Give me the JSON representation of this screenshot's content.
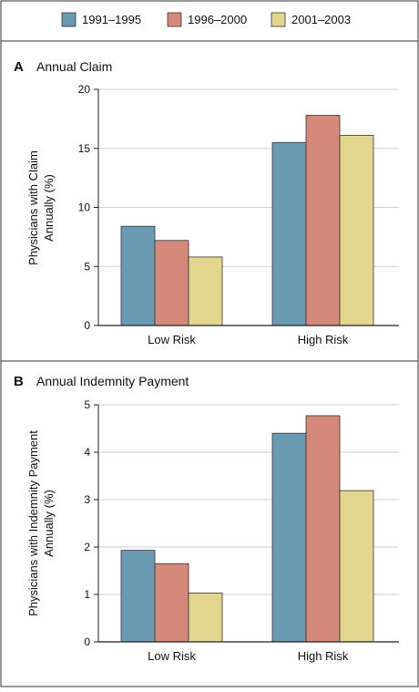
{
  "legend": [
    {
      "name": "1991–1995",
      "color": "#6a9ab2"
    },
    {
      "name": "1996–2000",
      "color": "#d4897a"
    },
    {
      "name": "2001–2003",
      "color": "#e3d790"
    }
  ],
  "chart_data": [
    {
      "type": "bar",
      "panel": "A",
      "title": "Annual Claim",
      "xlabel": "",
      "ylabel": [
        "Physicians with Claim",
        "Annually (%)"
      ],
      "categories": [
        "Low Risk",
        "High Risk"
      ],
      "ylim": [
        0,
        20
      ],
      "yticks": [
        0,
        5,
        10,
        15,
        20
      ],
      "grid": true,
      "series": [
        {
          "name": "1991–1995",
          "values": [
            8.4,
            15.5
          ]
        },
        {
          "name": "1996–2000",
          "values": [
            7.2,
            17.8
          ]
        },
        {
          "name": "2001–2003",
          "values": [
            5.8,
            16.1
          ]
        }
      ]
    },
    {
      "type": "bar",
      "panel": "B",
      "title": "Annual Indemnity Payment",
      "xlabel": "",
      "ylabel": [
        "Physicians with Indemnity Payment",
        "Annually (%)"
      ],
      "categories": [
        "Low Risk",
        "High Risk"
      ],
      "ylim": [
        0,
        5
      ],
      "yticks": [
        0,
        1,
        2,
        3,
        4,
        5
      ],
      "grid": true,
      "series": [
        {
          "name": "1991–1995",
          "values": [
            1.93,
            4.4
          ]
        },
        {
          "name": "1996–2000",
          "values": [
            1.65,
            4.77
          ]
        },
        {
          "name": "2001–2003",
          "values": [
            1.03,
            3.19
          ]
        }
      ]
    }
  ]
}
